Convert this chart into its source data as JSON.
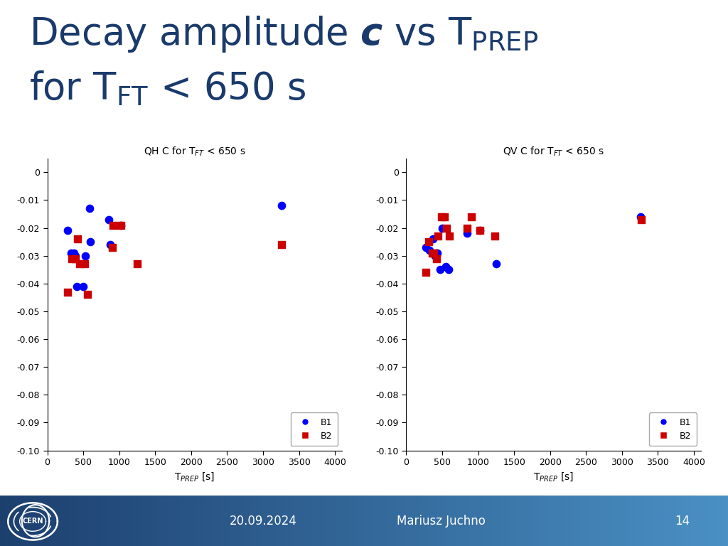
{
  "title_color": "#1a3a6b",
  "title_fontsize": 38,
  "left_title": "QH C for T$_{FT}$ < 650 s",
  "right_title": "QV C for T$_{FT}$ < 650 s",
  "qh_b1_x": [
    280,
    330,
    370,
    390,
    410,
    500,
    530,
    590,
    600,
    850,
    870,
    1020,
    3260
  ],
  "qh_b1_y": [
    -0.021,
    -0.029,
    -0.029,
    -0.03,
    -0.041,
    -0.041,
    -0.03,
    -0.013,
    -0.025,
    -0.017,
    -0.026,
    -0.019,
    -0.012
  ],
  "qh_b2_x": [
    280,
    340,
    390,
    420,
    450,
    520,
    560,
    900,
    910,
    1020,
    1250,
    3260
  ],
  "qh_b2_y": [
    -0.043,
    -0.031,
    -0.031,
    -0.024,
    -0.033,
    -0.033,
    -0.044,
    -0.027,
    -0.019,
    -0.019,
    -0.033,
    -0.026
  ],
  "qv_b1_x": [
    270,
    320,
    370,
    400,
    420,
    430,
    470,
    500,
    550,
    590,
    850,
    1020,
    1250,
    3260
  ],
  "qv_b1_y": [
    -0.027,
    -0.028,
    -0.024,
    -0.03,
    -0.029,
    -0.029,
    -0.035,
    -0.02,
    -0.034,
    -0.035,
    -0.022,
    -0.021,
    -0.033,
    -0.016
  ],
  "qv_b2_x": [
    270,
    310,
    360,
    380,
    420,
    440,
    490,
    530,
    560,
    600,
    850,
    910,
    1020,
    1230,
    3270
  ],
  "qv_b2_y": [
    -0.036,
    -0.025,
    -0.029,
    -0.029,
    -0.031,
    -0.023,
    -0.016,
    -0.016,
    -0.02,
    -0.023,
    -0.02,
    -0.016,
    -0.021,
    -0.023,
    -0.017
  ],
  "b1_color": "#0000ff",
  "b2_color": "#cc0000",
  "marker_size": 55,
  "xlim": [
    0,
    4100
  ],
  "xticks": [
    0,
    500,
    1000,
    1500,
    2000,
    2500,
    3000,
    3500,
    4000
  ],
  "ylim": [
    -0.1,
    0.005
  ],
  "yticks": [
    0,
    -0.01,
    -0.02,
    -0.03,
    -0.04,
    -0.05,
    -0.06,
    -0.07,
    -0.08,
    -0.09,
    -0.1
  ],
  "xlabel": "T$_{PREP}$ [s]",
  "tick_fontsize": 9,
  "label_fontsize": 10,
  "subplot_title_fontsize": 10,
  "footer_date": "20.09.2024",
  "footer_author": "Mariusz Juchno",
  "footer_page": "14"
}
